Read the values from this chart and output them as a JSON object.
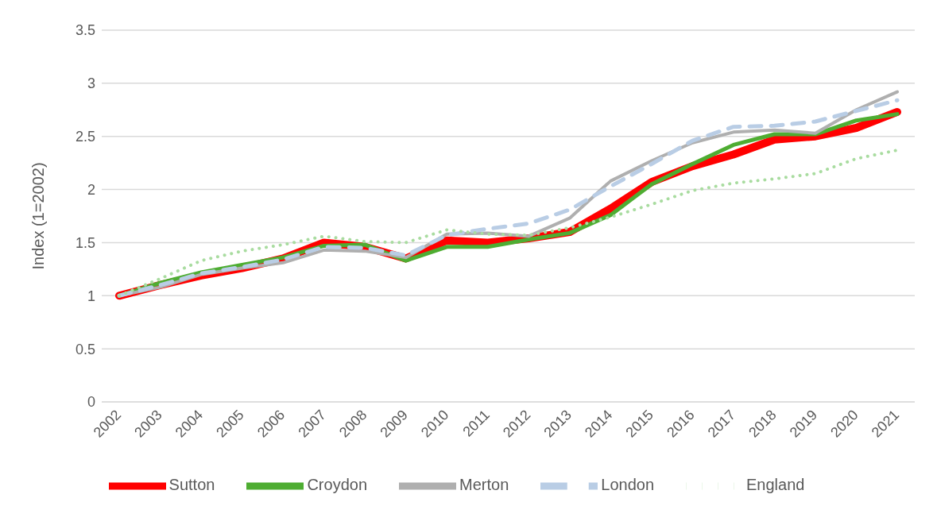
{
  "chart_data": {
    "type": "line",
    "ylabel": "Index (1=2002)",
    "categories": [
      "2002",
      "2003",
      "2004",
      "2005",
      "2006",
      "2007",
      "2008",
      "2009",
      "2010",
      "2011",
      "2012",
      "2013",
      "2014",
      "2015",
      "2016",
      "2017",
      "2018",
      "2019",
      "2020",
      "2021"
    ],
    "series": [
      {
        "name": "Sutton",
        "color": "#ff0000",
        "line_style": "solid",
        "values": [
          1.0,
          1.1,
          1.19,
          1.26,
          1.35,
          1.5,
          1.46,
          1.35,
          1.52,
          1.5,
          1.54,
          1.6,
          1.82,
          2.07,
          2.22,
          2.33,
          2.47,
          2.5,
          2.58,
          2.73
        ]
      },
      {
        "name": "Croydon",
        "color": "#4ead32",
        "line_style": "solid",
        "values": [
          1.0,
          1.12,
          1.22,
          1.29,
          1.36,
          1.47,
          1.48,
          1.33,
          1.46,
          1.46,
          1.53,
          1.59,
          1.76,
          2.05,
          2.24,
          2.42,
          2.52,
          2.52,
          2.65,
          2.71
        ]
      },
      {
        "name": "Merton",
        "color": "#afafaf",
        "line_style": "solid",
        "values": [
          1.0,
          1.08,
          1.2,
          1.26,
          1.31,
          1.43,
          1.42,
          1.36,
          1.58,
          1.59,
          1.56,
          1.73,
          2.08,
          2.27,
          2.44,
          2.54,
          2.56,
          2.53,
          2.75,
          2.92
        ]
      },
      {
        "name": "London",
        "color": "#b9cde5",
        "line_style": "dashed",
        "values": [
          1.0,
          1.1,
          1.21,
          1.27,
          1.34,
          1.46,
          1.45,
          1.38,
          1.57,
          1.63,
          1.68,
          1.81,
          2.03,
          2.24,
          2.46,
          2.59,
          2.6,
          2.64,
          2.74,
          2.84
        ]
      },
      {
        "name": "England",
        "color": "#a9dca0",
        "line_style": "dotted",
        "values": [
          1.0,
          1.16,
          1.33,
          1.42,
          1.48,
          1.56,
          1.51,
          1.5,
          1.62,
          1.58,
          1.57,
          1.64,
          1.74,
          1.86,
          1.99,
          2.06,
          2.1,
          2.15,
          2.29,
          2.37
        ]
      }
    ],
    "ylim": [
      0,
      3.5
    ],
    "yticks": [
      0,
      0.5,
      1,
      1.5,
      2,
      2.5,
      3,
      3.5
    ],
    "grid": "y",
    "legend": "bottom",
    "marker": "none"
  }
}
